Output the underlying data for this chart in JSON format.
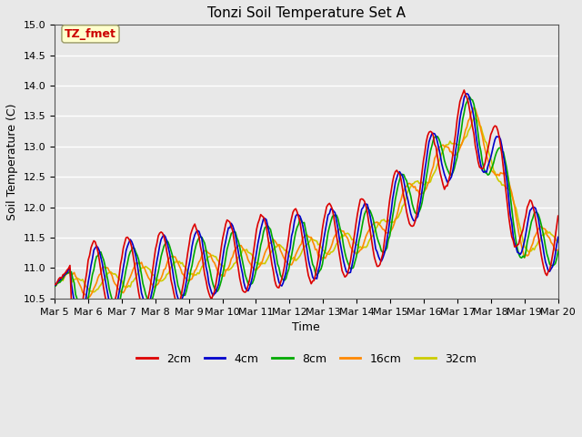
{
  "title": "Tonzi Soil Temperature Set A",
  "xlabel": "Time",
  "ylabel": "Soil Temperature (C)",
  "ylim": [
    10.5,
    15.0
  ],
  "xlim": [
    0,
    15
  ],
  "background_color": "#e8e8e8",
  "legend_label": "TZ_fmet",
  "legend_box_facecolor": "#ffffcc",
  "legend_box_edgecolor": "#999966",
  "colors": {
    "2cm": "#dd0000",
    "4cm": "#0000cc",
    "8cm": "#00aa00",
    "16cm": "#ff8800",
    "32cm": "#cccc00"
  },
  "tick_labels": [
    "Mar 5",
    "Mar 6",
    "Mar 7",
    "Mar 8",
    "Mar 9",
    "Mar 10",
    "Mar 11",
    "Mar 12",
    "Mar 13",
    "Mar 14",
    "Mar 15",
    "Mar 16",
    "Mar 17",
    "Mar 18",
    "Mar 19",
    "Mar 20"
  ],
  "yticks": [
    10.5,
    11.0,
    11.5,
    12.0,
    12.5,
    13.0,
    13.5,
    14.0,
    14.5,
    15.0
  ],
  "figsize": [
    6.4,
    4.8
  ],
  "dpi": 100,
  "title_fontsize": 11,
  "axis_label_fontsize": 9,
  "tick_fontsize": 8,
  "legend_fontsize": 9,
  "n_points": 360
}
